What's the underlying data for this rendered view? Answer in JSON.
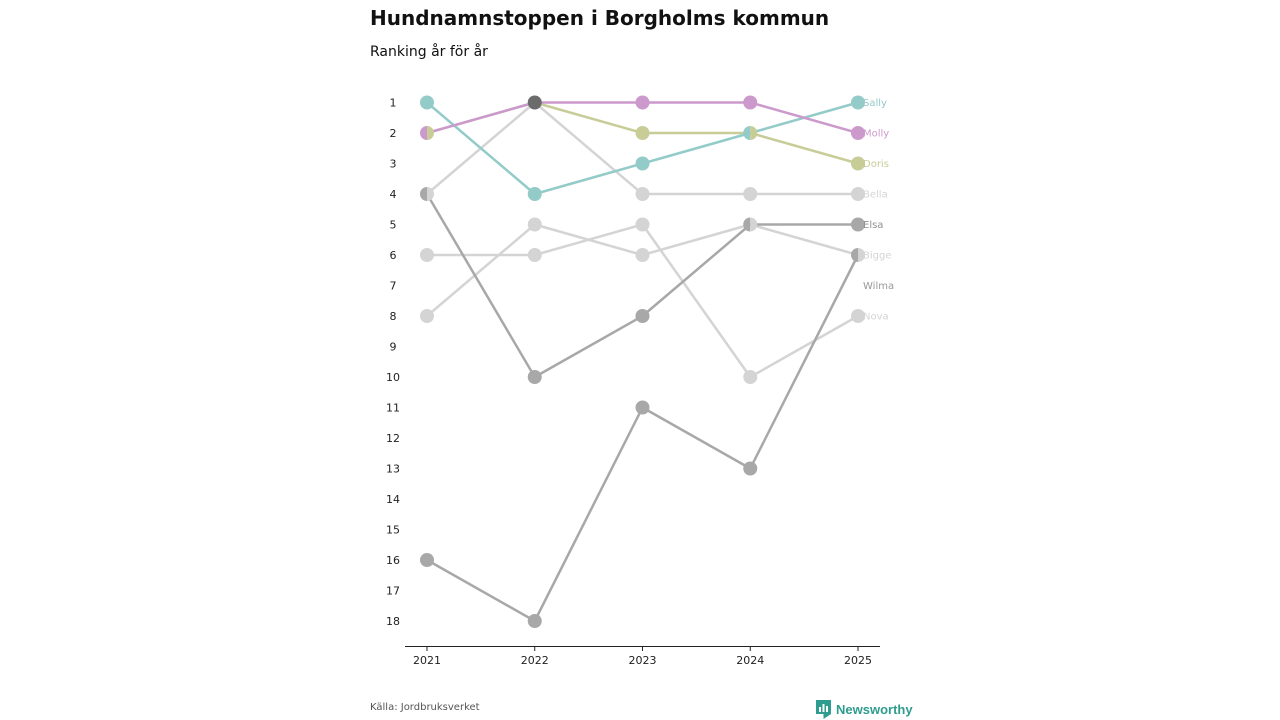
{
  "header": {
    "title": "Hundnamnstoppen i Borgholms kommun",
    "subtitle": "Ranking år för år"
  },
  "footer": {
    "source": "Källa: Jordbruksverket",
    "brand": "Newsworthy"
  },
  "chart_data": {
    "type": "line",
    "x": [
      "2021",
      "2022",
      "2023",
      "2024",
      "2025"
    ],
    "y_ticks": [
      1,
      2,
      3,
      4,
      5,
      6,
      7,
      8,
      9,
      10,
      11,
      12,
      13,
      14,
      15,
      16,
      17,
      18
    ],
    "y_inverted": true,
    "ylim": [
      1,
      18
    ],
    "grid": false,
    "legend": "end-labels",
    "series": [
      {
        "name": "Bella",
        "values": [
          4,
          1,
          4,
          4,
          4
        ],
        "color": "#d4d4d4"
      },
      {
        "name": "Nova",
        "values": [
          6,
          6,
          5,
          10,
          8
        ],
        "color": "#d4d4d4"
      },
      {
        "name": "Bigge",
        "values": [
          8,
          5,
          6,
          5,
          6
        ],
        "color": "#d4d4d4"
      },
      {
        "name": "Wilma",
        "values": [
          16,
          18,
          11,
          13,
          6
        ],
        "color": "#a8a8a8"
      },
      {
        "name": "Elsa",
        "values": [
          4,
          10,
          8,
          5,
          5
        ],
        "color": "#a8a8a8"
      },
      {
        "name": "Doris",
        "values": [
          2,
          1,
          2,
          2,
          3
        ],
        "color": "#c8cd98"
      },
      {
        "name": "Sally",
        "values": [
          1,
          4,
          3,
          2,
          1
        ],
        "color": "#93cbc9"
      },
      {
        "name": "Molly",
        "values": [
          2,
          1,
          1,
          1,
          2
        ],
        "color": "#cc99cc"
      }
    ],
    "end_labels": [
      {
        "text": "Sally",
        "rank": 1,
        "color": "#93cbc9"
      },
      {
        "text": "Molly",
        "rank": 2,
        "color": "#cc99cc"
      },
      {
        "text": "Doris",
        "rank": 3,
        "color": "#c8cd98"
      },
      {
        "text": "Bella",
        "rank": 4,
        "color": "#d4d4d4"
      },
      {
        "text": "Elsa",
        "rank": 5,
        "color": "#909090"
      },
      {
        "text": "Bigge",
        "rank": 6,
        "color": "#d4d4d4"
      },
      {
        "text": "Wilma",
        "rank": 7,
        "color": "#999999"
      },
      {
        "text": "Nova",
        "rank": 8,
        "color": "#d4d4d4"
      }
    ],
    "shared_marker": {
      "year": "2022",
      "rank": 1,
      "color": "#6b6b6b"
    }
  }
}
